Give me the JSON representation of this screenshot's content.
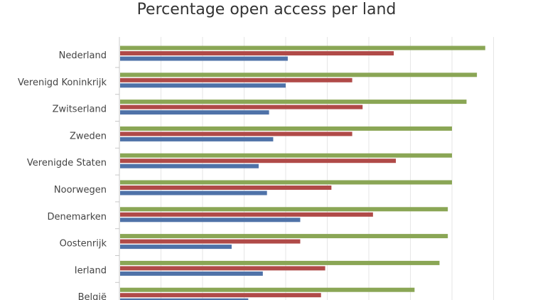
{
  "chart_data": {
    "type": "bar",
    "orientation": "horizontal",
    "title": "Percentage open access per land",
    "xlabel": "",
    "ylabel": "",
    "xlim": [
      0,
      100
    ],
    "grid": true,
    "categories": [
      "Nederland",
      "Verenigd Koninkrijk",
      "Zwitserland",
      "Zweden",
      "Verenigde Staten",
      "Noorwegen",
      "Denemarken",
      "Oostenrijk",
      "Ierland",
      "België"
    ],
    "series": [
      {
        "color": "#8aa655",
        "values": [
          88,
          86,
          83.5,
          80,
          80,
          80,
          79,
          79,
          77,
          71
        ]
      },
      {
        "color": "#b04a48",
        "values": [
          66,
          56,
          58.5,
          56,
          66.5,
          51,
          61,
          43.5,
          49.5,
          48.5
        ]
      },
      {
        "color": "#4f72a8",
        "values": [
          40.5,
          40,
          36,
          37,
          33.5,
          35.5,
          43.5,
          27,
          34.5,
          31
        ]
      }
    ]
  }
}
